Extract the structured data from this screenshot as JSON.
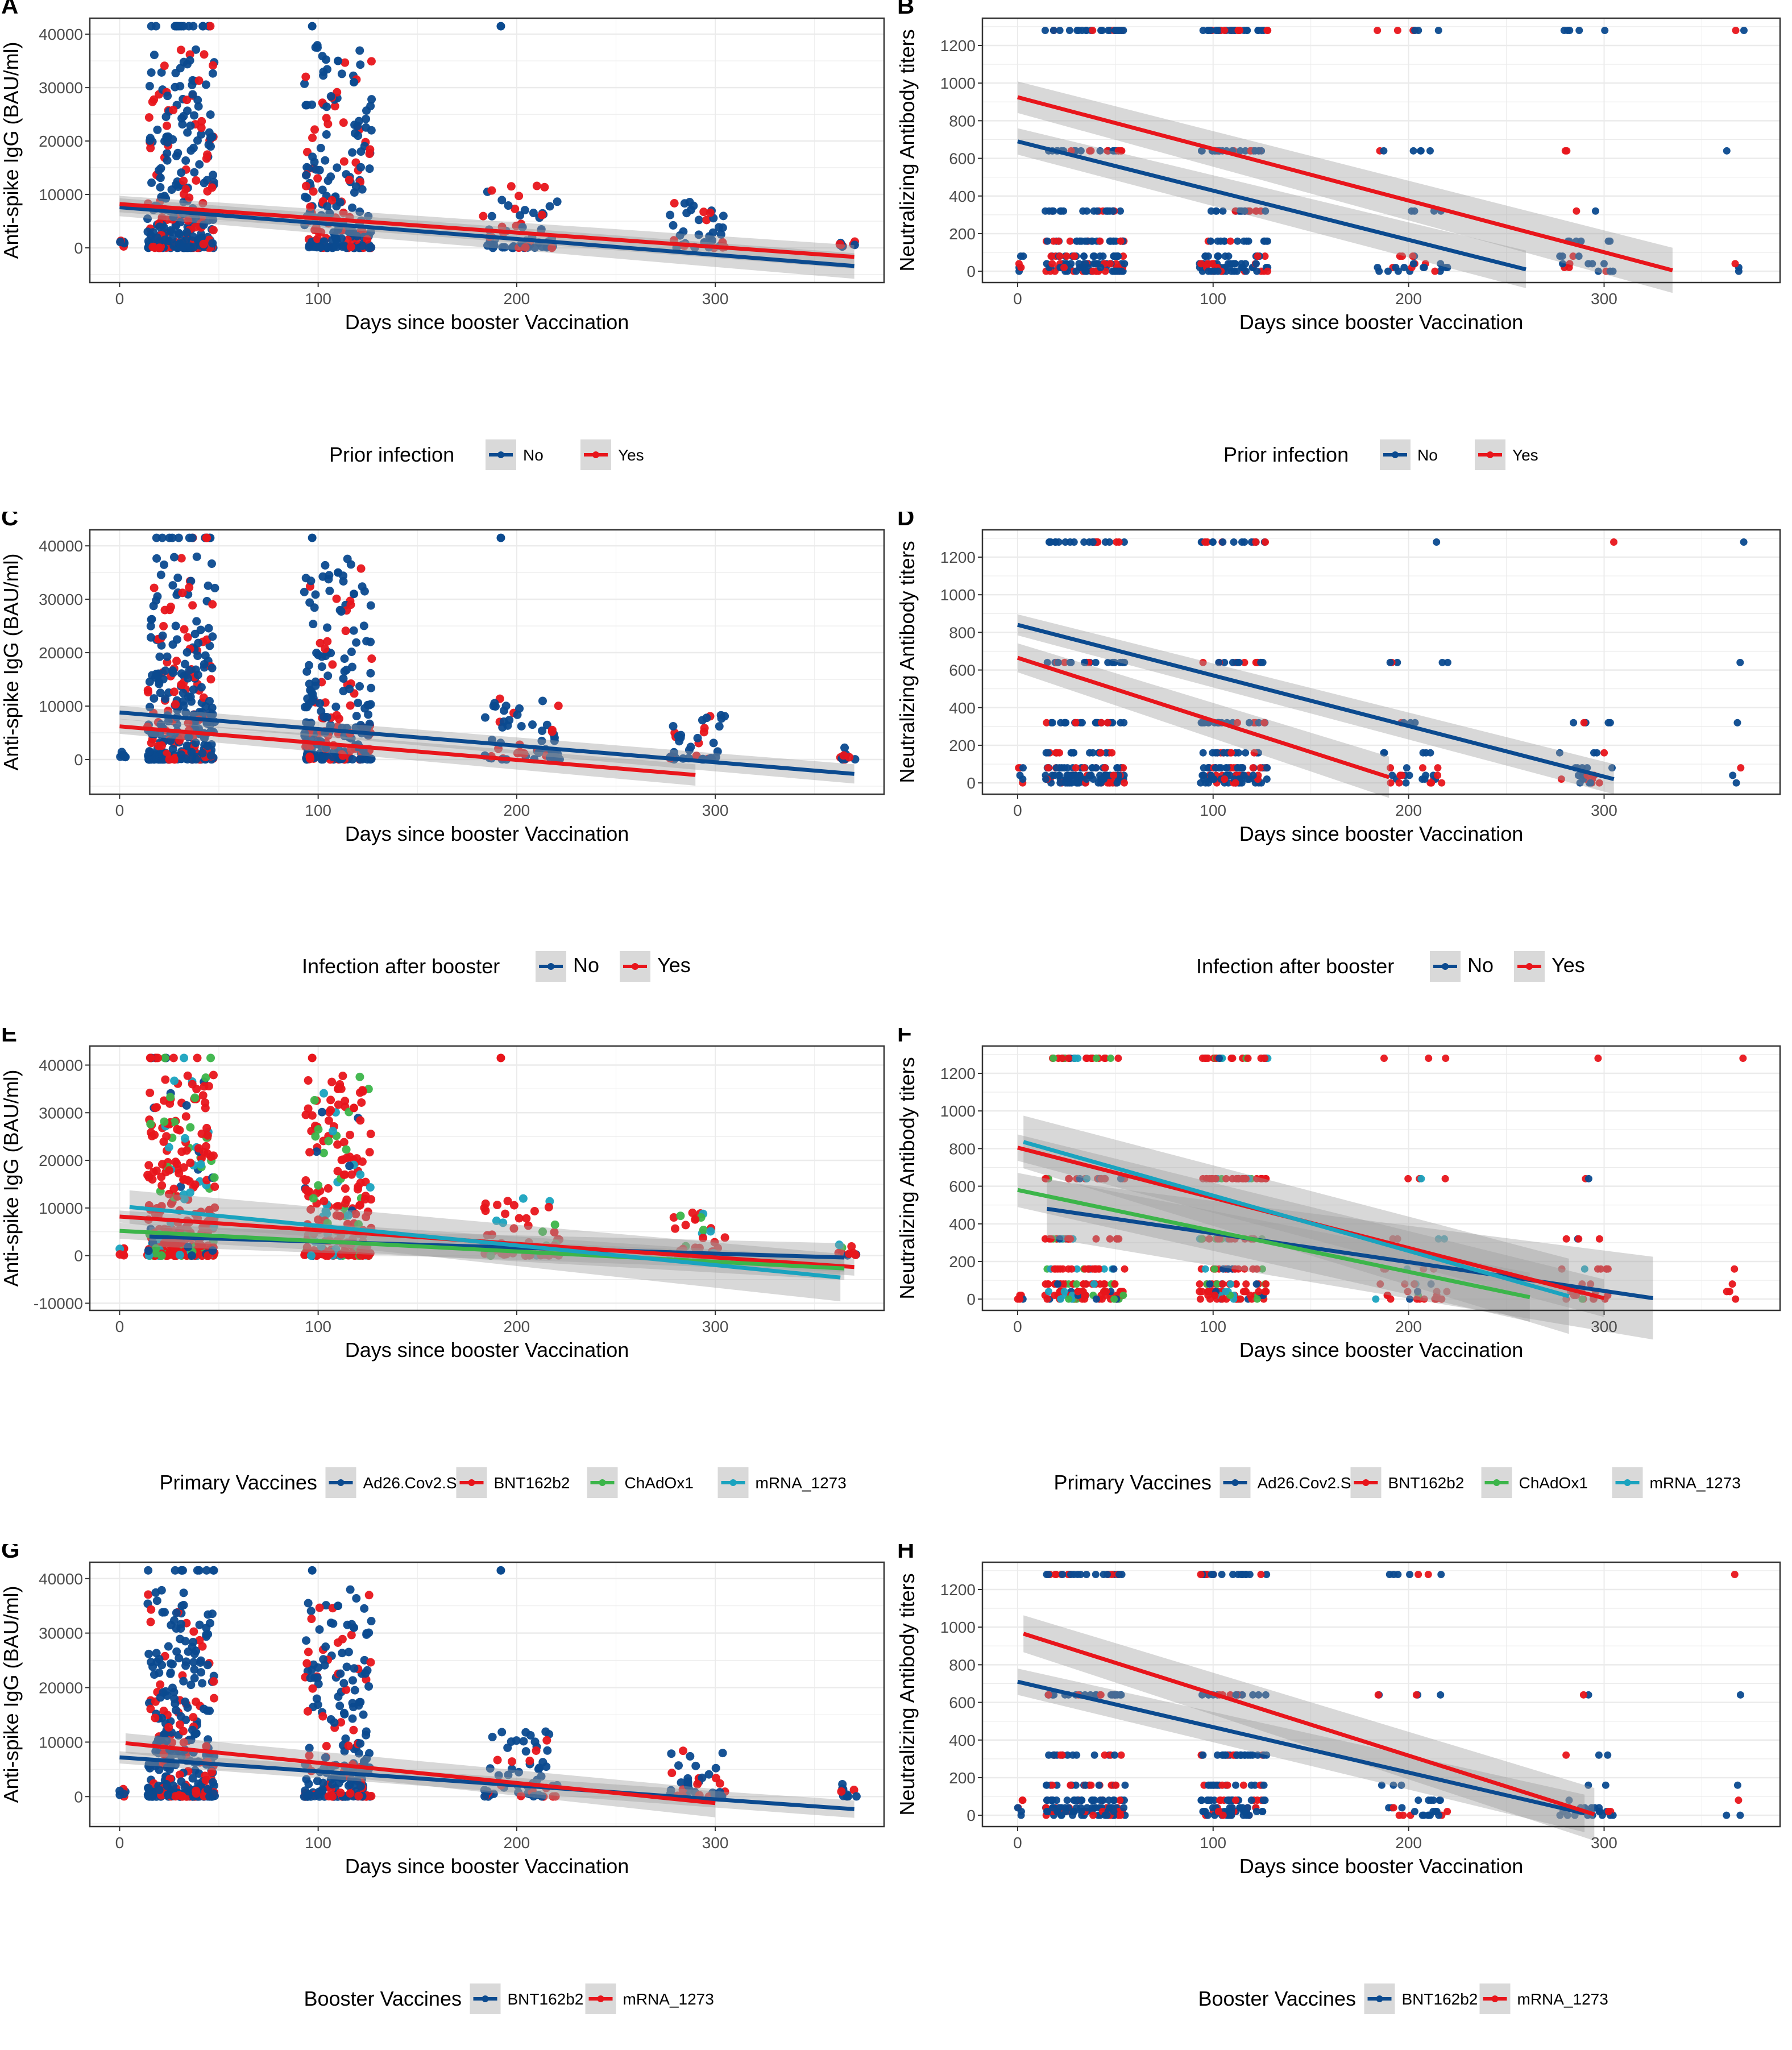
{
  "colors": {
    "blue": "#0b4a8f",
    "red": "#e8151b",
    "green": "#3cb54a",
    "cyan": "#1aa3bf",
    "ci_band": "#9e9e9e",
    "grid": "#ebebeb",
    "frame": "#333333"
  },
  "chart_data": [
    {
      "panel": "A",
      "type": "scatter",
      "xlabel": "Days since booster Vaccination",
      "ylabel": "Anti-spike IgG (BAU/ml)",
      "xlim": [
        -15,
        385
      ],
      "ylim": [
        -6500,
        43000
      ],
      "xticks": [
        0,
        100,
        200,
        300
      ],
      "yticks": [
        0,
        10000,
        20000,
        30000,
        40000
      ],
      "legend_title": "Prior infection",
      "legend_position": "bottom",
      "series": [
        {
          "name": "No",
          "color": "blue",
          "fit": {
            "x0": 0,
            "y0": 7600,
            "x1": 370,
            "y1": -3400,
            "ci": 1200
          }
        },
        {
          "name": "Yes",
          "color": "red",
          "fit": {
            "x0": 0,
            "y0": 8200,
            "x1": 370,
            "y1": -1700,
            "ci": 1100
          }
        }
      ],
      "point_clusters": "igg"
    },
    {
      "panel": "B",
      "type": "scatter",
      "xlabel": "Days since booster Vaccination",
      "ylabel": "Neutralizing Antibody titers",
      "xlim": [
        -18,
        390
      ],
      "ylim": [
        -60,
        1345
      ],
      "xticks": [
        0,
        100,
        200,
        300
      ],
      "yticks": [
        0,
        200,
        400,
        600,
        800,
        1000,
        1200
      ],
      "legend_title": "Prior infection",
      "legend_position": "bottom",
      "series": [
        {
          "name": "No",
          "color": "blue",
          "fit": {
            "x0": 0,
            "y0": 690,
            "x1": 260,
            "y1": 10,
            "ci": 50
          }
        },
        {
          "name": "Yes",
          "color": "red",
          "fit": {
            "x0": 0,
            "y0": 925,
            "x1": 335,
            "y1": 5,
            "ci": 60
          }
        }
      ],
      "point_clusters": "nab"
    },
    {
      "panel": "C",
      "type": "scatter",
      "xlabel": "Days since booster Vaccination",
      "ylabel": "Anti-spike IgG (BAU/ml)",
      "xlim": [
        -15,
        385
      ],
      "ylim": [
        -6500,
        43000
      ],
      "xticks": [
        0,
        100,
        200,
        300
      ],
      "yticks": [
        0,
        10000,
        20000,
        30000,
        40000
      ],
      "legend_title": "Infection after booster",
      "legend_position": "bottom",
      "series": [
        {
          "name": "No",
          "color": "blue",
          "fit": {
            "x0": 0,
            "y0": 8800,
            "x1": 370,
            "y1": -2700,
            "ci": 900
          }
        },
        {
          "name": "Yes",
          "color": "red",
          "fit": {
            "x0": 0,
            "y0": 6200,
            "x1": 290,
            "y1": -2900,
            "ci": 1000
          }
        }
      ],
      "point_clusters": "igg"
    },
    {
      "panel": "D",
      "type": "scatter",
      "xlabel": "Days since booster Vaccination",
      "ylabel": "Neutralizing Antibody titers",
      "xlim": [
        -18,
        390
      ],
      "ylim": [
        -60,
        1345
      ],
      "xticks": [
        0,
        100,
        200,
        300
      ],
      "yticks": [
        0,
        200,
        400,
        600,
        800,
        1000,
        1200
      ],
      "legend_title": "Infection after booster",
      "legend_position": "bottom",
      "series": [
        {
          "name": "No",
          "color": "blue",
          "fit": {
            "x0": 0,
            "y0": 840,
            "x1": 305,
            "y1": 20,
            "ci": 40
          }
        },
        {
          "name": "Yes",
          "color": "red",
          "fit": {
            "x0": 0,
            "y0": 665,
            "x1": 190,
            "y1": 30,
            "ci": 55
          }
        }
      ],
      "point_clusters": "nab"
    },
    {
      "panel": "E",
      "type": "scatter",
      "xlabel": "Days since booster Vaccination",
      "ylabel": "Anti-spike IgG (BAU/ml)",
      "xlim": [
        -15,
        385
      ],
      "ylim": [
        -11500,
        44000
      ],
      "xticks": [
        0,
        100,
        200,
        300
      ],
      "yticks": [
        -10000,
        0,
        10000,
        20000,
        30000,
        40000
      ],
      "legend_title": "Primary Vaccines",
      "legend_position": "bottom",
      "series": [
        {
          "name": "Ad26.Cov2.S",
          "color": "blue",
          "fit": {
            "x0": 15,
            "y0": 4000,
            "x1": 365,
            "y1": -400,
            "ci": 1500
          }
        },
        {
          "name": "BNT162b2",
          "color": "red",
          "fit": {
            "x0": 0,
            "y0": 8200,
            "x1": 370,
            "y1": -2400,
            "ci": 900
          }
        },
        {
          "name": "ChAdOx1",
          "color": "green",
          "fit": {
            "x0": 0,
            "y0": 5200,
            "x1": 365,
            "y1": -2700,
            "ci": 1200
          }
        },
        {
          "name": "mRNA_1273",
          "color": "cyan",
          "fit": {
            "x0": 5,
            "y0": 10200,
            "x1": 363,
            "y1": -4600,
            "ci": 2500
          }
        }
      ],
      "point_clusters": "igg_multi"
    },
    {
      "panel": "F",
      "type": "scatter",
      "xlabel": "Days since booster Vaccination",
      "ylabel": "Neutralizing Antibody titers",
      "xlim": [
        -18,
        390
      ],
      "ylim": [
        -60,
        1345
      ],
      "xticks": [
        0,
        100,
        200,
        300
      ],
      "yticks": [
        0,
        200,
        400,
        600,
        800,
        1000,
        1200
      ],
      "legend_title": "Primary Vaccines",
      "legend_position": "bottom",
      "series": [
        {
          "name": "Ad26.Cov2.S",
          "color": "blue",
          "fit": {
            "x0": 15,
            "y0": 480,
            "x1": 325,
            "y1": 5,
            "ci": 110
          }
        },
        {
          "name": "BNT162b2",
          "color": "red",
          "fit": {
            "x0": 0,
            "y0": 805,
            "x1": 300,
            "y1": 5,
            "ci": 50
          }
        },
        {
          "name": "ChAdOx1",
          "color": "green",
          "fit": {
            "x0": 0,
            "y0": 580,
            "x1": 262,
            "y1": 10,
            "ci": 65
          }
        },
        {
          "name": "mRNA_1273",
          "color": "cyan",
          "fit": {
            "x0": 3,
            "y0": 835,
            "x1": 282,
            "y1": 15,
            "ci": 100
          }
        }
      ],
      "point_clusters": "nab_multi"
    },
    {
      "panel": "G",
      "type": "scatter",
      "xlabel": "Days since booster Vaccination",
      "ylabel": "Anti-spike IgG (BAU/ml)",
      "xlim": [
        -15,
        385
      ],
      "ylim": [
        -5500,
        43000
      ],
      "xticks": [
        0,
        100,
        200,
        300
      ],
      "yticks": [
        0,
        10000,
        20000,
        30000,
        40000
      ],
      "legend_title": "Booster Vaccines",
      "legend_position": "bottom",
      "series": [
        {
          "name": "BNT162b2",
          "color": "blue",
          "fit": {
            "x0": 0,
            "y0": 7200,
            "x1": 370,
            "y1": -2300,
            "ci": 800
          }
        },
        {
          "name": "mRNA_1273",
          "color": "red",
          "fit": {
            "x0": 3,
            "y0": 9800,
            "x1": 300,
            "y1": -1200,
            "ci": 1300
          }
        }
      ],
      "point_clusters": "igg"
    },
    {
      "panel": "H",
      "type": "scatter",
      "xlabel": "Days since booster Vaccination",
      "ylabel": "Neutralizing Antibody titers",
      "xlim": [
        -18,
        390
      ],
      "ylim": [
        -60,
        1345
      ],
      "xticks": [
        0,
        100,
        200,
        300
      ],
      "yticks": [
        0,
        200,
        400,
        600,
        800,
        1000,
        1200
      ],
      "legend_title": "Booster Vaccines",
      "legend_position": "bottom",
      "series": [
        {
          "name": "BNT162b2",
          "color": "blue",
          "fit": {
            "x0": 0,
            "y0": 710,
            "x1": 290,
            "y1": 10,
            "ci": 50
          }
        },
        {
          "name": "mRNA_1273",
          "color": "red",
          "fit": {
            "x0": 3,
            "y0": 965,
            "x1": 295,
            "y1": 5,
            "ci": 70
          }
        }
      ],
      "point_clusters": "nab"
    }
  ],
  "clusters": {
    "igg_days": [
      [
        0,
        3
      ],
      [
        14,
        48
      ],
      [
        93,
        127
      ],
      [
        183,
        222
      ],
      [
        277,
        305
      ],
      [
        362,
        372
      ]
    ],
    "igg_max": 41500,
    "nab_days": [
      [
        0,
        3
      ],
      [
        14,
        55
      ],
      [
        93,
        128
      ],
      [
        183,
        220
      ],
      [
        277,
        305
      ],
      [
        362,
        372
      ]
    ],
    "nab_levels": [
      0,
      20,
      40,
      80,
      160,
      320,
      640,
      1280
    ]
  }
}
